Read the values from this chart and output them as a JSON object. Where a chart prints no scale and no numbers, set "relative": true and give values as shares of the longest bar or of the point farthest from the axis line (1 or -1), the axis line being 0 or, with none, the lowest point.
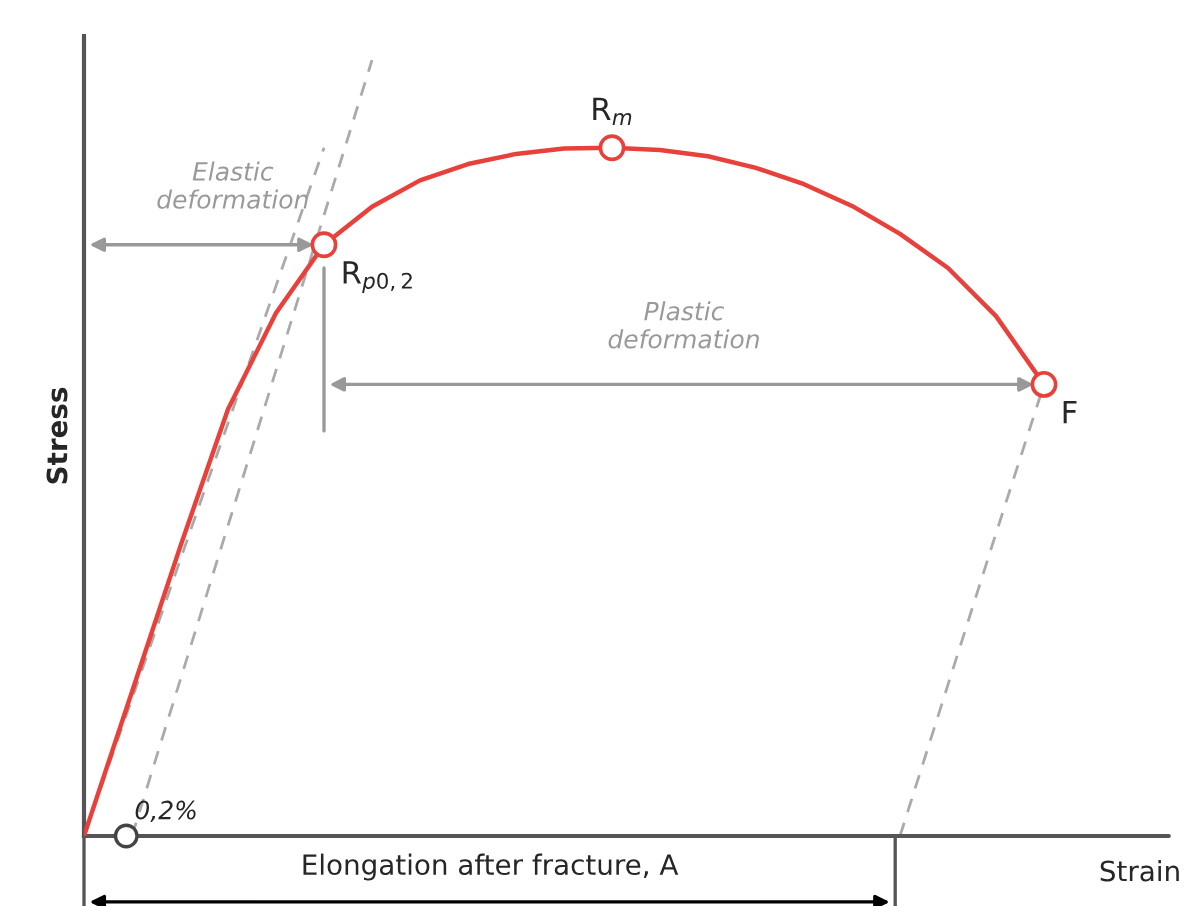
{
  "chart_data": {
    "type": "line",
    "relative": true,
    "legend": false,
    "xlabel": "Strain",
    "ylabel": "Stress",
    "grid": false,
    "categories": [
      null,
      null,
      null,
      null,
      null,
      null,
      null,
      null,
      null,
      null,
      null,
      null,
      null,
      null,
      null,
      null,
      null,
      null,
      null,
      null,
      null
    ],
    "series": [
      {
        "color": "#aaaaaa",
        "line_style": "dashed",
        "values": [
          0,
          0.177,
          0.355,
          0.532,
          0.709,
          0.887,
          null,
          null,
          null,
          null,
          null,
          null,
          null,
          null,
          null,
          null,
          null,
          null,
          null,
          null,
          null
        ]
      },
      {
        "color": "#aaaaaa",
        "line_style": "dashed",
        "values": [
          null,
          0,
          0.2,
          0.4,
          0.6,
          0.8,
          1.0,
          null,
          null,
          null,
          null,
          null,
          null,
          null,
          null,
          null,
          null,
          null,
          null,
          null,
          null
        ]
      },
      {
        "color": "#aaaaaa",
        "line_style": "dashed",
        "values": [
          null,
          null,
          null,
          null,
          null,
          null,
          null,
          null,
          null,
          null,
          null,
          null,
          null,
          null,
          null,
          null,
          null,
          0,
          0.195,
          0.39,
          0.582
        ]
      },
      {
        "color": "#e8403a",
        "line_style": "solid",
        "values": [
          0,
          0.186,
          0.372,
          0.55,
          0.674,
          0.762,
          0.811,
          0.845,
          0.866,
          0.879,
          0.886,
          0.887,
          0.884,
          0.876,
          0.861,
          0.84,
          0.812,
          0.776,
          0.732,
          0.67,
          0.582
        ]
      }
    ],
    "annotations": [
      "Elastic\ndeformation",
      "Plastic\ndeformation",
      "0,2%",
      "Elongation after fracture, A",
      "R$_{p0,2}$",
      "R$_{m}$",
      "F"
    ]
  }
}
